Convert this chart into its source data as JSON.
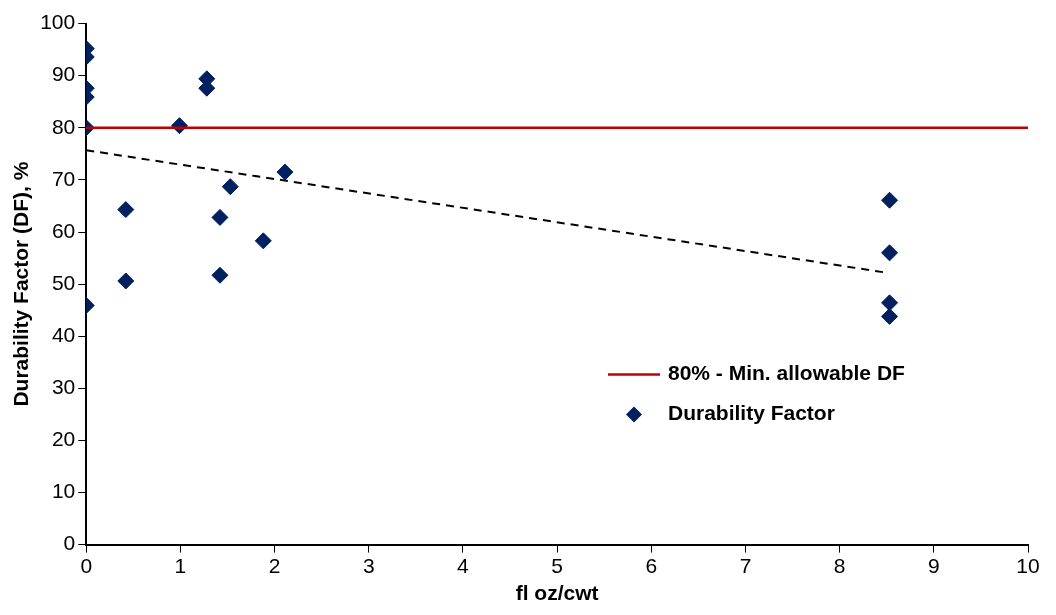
{
  "chart_data": {
    "type": "scatter",
    "xlabel": "fl oz/cwt",
    "ylabel": "Durability Factor (DF), %",
    "xlim": [
      0,
      10
    ],
    "xticks": [
      0,
      1,
      2,
      3,
      4,
      5,
      6,
      7,
      8,
      9,
      10
    ],
    "ylim": [
      0,
      100
    ],
    "yticks": [
      0,
      10,
      20,
      30,
      40,
      50,
      60,
      70,
      80,
      90,
      100
    ],
    "grid": false,
    "legend": "bottom right",
    "marker": "diamond",
    "ref_lines": [
      {
        "axis": "y",
        "value": 80,
        "label": "80% - Min. allowable DF",
        "color": "#c00000"
      }
    ],
    "series": [
      {
        "name": "Durability Factor",
        "color": "#002060",
        "x": [
          0,
          0,
          0,
          0,
          0,
          0,
          0.42,
          0.42,
          0.99,
          1.28,
          1.28,
          1.53,
          1.42,
          1.42,
          1.88,
          2.11,
          8.53,
          8.53,
          8.53,
          8.53
        ],
        "values": [
          95.2,
          93.6,
          87.6,
          85.9,
          80,
          45.9,
          64.3,
          50.6,
          80.4,
          89.4,
          87.6,
          68.7,
          62.8,
          51.7,
          58.3,
          71.5,
          66.1,
          56,
          46.4,
          43.8
        ]
      },
      {
        "type": "line",
        "color": "#000000",
        "line_style": "dashed",
        "marker": "none",
        "x": [
          0,
          8.46
        ],
        "values": [
          75.7,
          52.3
        ]
      }
    ]
  }
}
